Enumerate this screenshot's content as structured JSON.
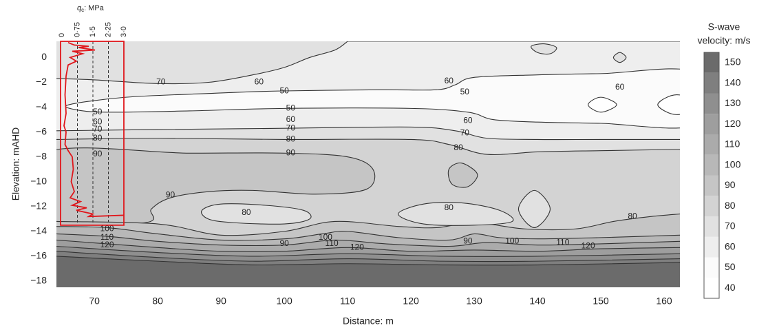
{
  "chart_data": {
    "type": "contour",
    "x_label": "Distance: m",
    "y_label": "Elevation: mAHD",
    "xlim": [
      64,
      162.5
    ],
    "ylim": [
      -18.5,
      1.3
    ],
    "xticks": [
      70,
      80,
      90,
      100,
      110,
      120,
      130,
      140,
      150,
      160
    ],
    "yticks": [
      {
        "value": 0,
        "label": "0"
      },
      {
        "value": -2,
        "label": "−2"
      },
      {
        "value": -4,
        "label": "−4"
      },
      {
        "value": -6,
        "label": "−6"
      },
      {
        "value": -8,
        "label": "−8"
      },
      {
        "value": -10,
        "label": "−10"
      },
      {
        "value": -12,
        "label": "−12"
      },
      {
        "value": -14,
        "label": "−14"
      },
      {
        "value": -16,
        "label": "−16"
      },
      {
        "value": -18,
        "label": "−18"
      }
    ],
    "colorbar": {
      "title": [
        "S-wave",
        "velocity: m/s"
      ],
      "levels": [
        40,
        50,
        60,
        70,
        80,
        90,
        100,
        110,
        120,
        130,
        140,
        150
      ],
      "colors": [
        "#ffffff",
        "#fbfbfb",
        "#eeeeee",
        "#e1e1e1",
        "#d3d3d3",
        "#c5c5c5",
        "#b8b8b8",
        "#ababab",
        "#9e9e9e",
        "#8f8f8f",
        "#7f7f7f",
        "#6b6b6b"
      ]
    },
    "regions": [
      {
        "level": 60,
        "fill": "below",
        "x": [
          64,
          162.5
        ],
        "y": [
          1.3,
          1.3
        ]
      },
      {
        "level": 70,
        "fill": "above",
        "x": [
          64,
          70,
          80,
          88,
          95,
          100,
          104,
          108,
          110
        ],
        "y": [
          -1.7,
          -1.8,
          -2.1,
          -2.0,
          -1.4,
          -0.8,
          0.0,
          0.6,
          1.3
        ]
      },
      {
        "level": 70,
        "fill": "closed",
        "x": [
          139,
          141,
          143,
          142,
          140
        ],
        "y": [
          0.9,
          1.1,
          0.8,
          0.3,
          0.4
        ]
      },
      {
        "level": 70,
        "fill": "closed",
        "x": [
          152,
          153,
          154,
          153
        ],
        "y": [
          0.0,
          0.4,
          0.0,
          -0.4
        ]
      },
      {
        "level": 50,
        "fill": "closed",
        "x": [
          66,
          75,
          88,
          99,
          115,
          124,
          127,
          130,
          140,
          150,
          165,
          165,
          150,
          140,
          133,
          129,
          120,
          100,
          85,
          72,
          67
        ],
        "y": [
          -3.8,
          -3.2,
          -2.9,
          -2.7,
          -2.6,
          -2.6,
          -2.2,
          -1.6,
          -1.4,
          -1.3,
          -1.2,
          -5.4,
          -5.3,
          -5.2,
          -5.0,
          -4.4,
          -4.1,
          -4.1,
          -4.3,
          -4.4,
          -4.2
        ]
      },
      {
        "level": 40,
        "fill": "closed",
        "x": [
          148,
          150,
          152.5,
          150
        ],
        "y": [
          -3.8,
          -3.2,
          -3.8,
          -4.4
        ]
      },
      {
        "level": 40,
        "fill": "closed",
        "x": [
          159,
          162,
          166,
          162
        ],
        "y": [
          -3.8,
          -3.0,
          -3.8,
          -4.6
        ]
      },
      {
        "level": 70,
        "fill": "below",
        "x": [
          64,
          80,
          100,
          120,
          127,
          132,
          140,
          150,
          162.5
        ],
        "y": [
          -5.9,
          -5.8,
          -5.7,
          -5.6,
          -5.9,
          -6.5,
          -6.6,
          -6.6,
          -6.6
        ]
      },
      {
        "level": 80,
        "fill": "below",
        "x": [
          64,
          80,
          100,
          120,
          126,
          132,
          140,
          150,
          162.5
        ],
        "y": [
          -6.6,
          -6.5,
          -6.6,
          -6.6,
          -7.0,
          -7.8,
          -7.6,
          -7.5,
          -7.4
        ]
      },
      {
        "level": 90,
        "fill": "closed",
        "x": [
          62,
          85,
          100,
          110,
          114,
          113,
          105,
          95,
          88,
          82,
          79,
          78,
          62
        ],
        "y": [
          -7.7,
          -7.7,
          -7.7,
          -8.0,
          -9.0,
          -10.6,
          -11.0,
          -10.7,
          -10.8,
          -11.3,
          -12.2,
          -13.3,
          -13.4
        ]
      },
      {
        "level": 90,
        "fill": "closed",
        "x": [
          126,
          128,
          130.5,
          129,
          126.5
        ],
        "y": [
          -9.0,
          -8.5,
          -9.4,
          -10.4,
          -10.2
        ]
      },
      {
        "level": 90,
        "fill": "below",
        "x": [
          64,
          80,
          90,
          100,
          108,
          118,
          124,
          130,
          138,
          146,
          152,
          158,
          162.5
        ],
        "y": [
          -13.2,
          -13.4,
          -14.3,
          -14.0,
          -13.2,
          -13.6,
          -13.7,
          -13.3,
          -13.8,
          -13.8,
          -13.2,
          -12.8,
          -12.6
        ]
      },
      {
        "level": 70,
        "fill": "closed",
        "x": [
          87,
          90,
          97,
          103,
          104,
          100,
          92,
          88
        ],
        "y": [
          -12.3,
          -11.8,
          -11.9,
          -12.3,
          -13.0,
          -13.4,
          -13.3,
          -13.0
        ]
      },
      {
        "level": 70,
        "fill": "closed",
        "x": [
          118,
          122,
          128,
          134,
          136,
          130,
          122
        ],
        "y": [
          -12.6,
          -11.8,
          -11.7,
          -12.3,
          -13.2,
          -13.5,
          -13.4
        ]
      },
      {
        "level": 70,
        "fill": "closed",
        "x": [
          137,
          139.5,
          142,
          139.5
        ],
        "y": [
          -12.2,
          -10.7,
          -12.2,
          -13.7
        ]
      },
      {
        "level": 100,
        "fill": "below",
        "x": [
          64,
          72,
          80,
          90,
          100,
          106,
          110,
          118,
          126,
          130,
          134,
          140,
          150,
          162.5
        ],
        "y": [
          -13.6,
          -13.7,
          -14.2,
          -14.7,
          -14.6,
          -14.2,
          -14.0,
          -14.5,
          -14.7,
          -14.2,
          -14.5,
          -14.6,
          -14.5,
          -14.3
        ]
      },
      {
        "level": 110,
        "fill": "below",
        "x": [
          64,
          72,
          80,
          90,
          100,
          108,
          116,
          126,
          132,
          140,
          150,
          162.5
        ],
        "y": [
          -14.2,
          -14.4,
          -14.8,
          -15.1,
          -15.1,
          -14.7,
          -15.0,
          -15.2,
          -14.9,
          -15.1,
          -15.0,
          -14.8
        ]
      },
      {
        "level": 120,
        "fill": "below",
        "x": [
          64,
          72,
          80,
          90,
          100,
          110,
          120,
          130,
          140,
          150,
          162.5
        ],
        "y": [
          -14.7,
          -15.0,
          -15.3,
          -15.6,
          -15.6,
          -15.3,
          -15.6,
          -15.5,
          -15.6,
          -15.4,
          -15.3
        ]
      },
      {
        "level": 130,
        "fill": "below",
        "x": [
          64,
          80,
          95,
          110,
          125,
          140,
          162.5
        ],
        "y": [
          -15.2,
          -15.7,
          -16.0,
          -15.8,
          -16.0,
          -16.0,
          -15.8
        ]
      },
      {
        "level": 140,
        "fill": "below",
        "x": [
          64,
          80,
          95,
          110,
          125,
          140,
          162.5
        ],
        "y": [
          -15.6,
          -16.1,
          -16.4,
          -16.2,
          -16.4,
          -16.4,
          -16.2
        ]
      },
      {
        "level": 150,
        "fill": "below",
        "x": [
          64,
          80,
          95,
          110,
          125,
          140,
          162.5
        ],
        "y": [
          -16.0,
          -16.4,
          -16.7,
          -16.6,
          -16.7,
          -16.7,
          -16.5
        ]
      }
    ],
    "contour_labels": [
      {
        "text": "70",
        "x": 80.5,
        "y": -2.0
      },
      {
        "text": "60",
        "x": 96,
        "y": -2.0
      },
      {
        "text": "50",
        "x": 100,
        "y": -2.7
      },
      {
        "text": "60",
        "x": 126,
        "y": -1.9
      },
      {
        "text": "50",
        "x": 128.5,
        "y": -2.8
      },
      {
        "text": "60",
        "x": 153,
        "y": -2.4
      },
      {
        "text": "50",
        "x": 70.5,
        "y": -4.4
      },
      {
        "text": "60",
        "x": 70.5,
        "y": -5.2
      },
      {
        "text": "70",
        "x": 70.5,
        "y": -5.8
      },
      {
        "text": "80",
        "x": 70.5,
        "y": -6.5
      },
      {
        "text": "90",
        "x": 70.5,
        "y": -7.8
      },
      {
        "text": "50",
        "x": 101,
        "y": -4.1
      },
      {
        "text": "60",
        "x": 101,
        "y": -5.0
      },
      {
        "text": "70",
        "x": 101,
        "y": -5.7
      },
      {
        "text": "80",
        "x": 101,
        "y": -6.6
      },
      {
        "text": "90",
        "x": 101,
        "y": -7.7
      },
      {
        "text": "60",
        "x": 129,
        "y": -5.1
      },
      {
        "text": "70",
        "x": 128.5,
        "y": -6.1
      },
      {
        "text": "80",
        "x": 127.5,
        "y": -7.3
      },
      {
        "text": "90",
        "x": 82,
        "y": -11.1
      },
      {
        "text": "80",
        "x": 94,
        "y": -12.5
      },
      {
        "text": "80",
        "x": 126,
        "y": -12.1
      },
      {
        "text": "80",
        "x": 155,
        "y": -12.8
      },
      {
        "text": "100",
        "x": 72,
        "y": -13.8
      },
      {
        "text": "110",
        "x": 72,
        "y": -14.5
      },
      {
        "text": "120",
        "x": 72,
        "y": -15.1
      },
      {
        "text": "90",
        "x": 100,
        "y": -15.0
      },
      {
        "text": "100",
        "x": 106.5,
        "y": -14.5
      },
      {
        "text": "110",
        "x": 107.5,
        "y": -15.0
      },
      {
        "text": "120",
        "x": 111.5,
        "y": -15.3
      },
      {
        "text": "90",
        "x": 129,
        "y": -14.8
      },
      {
        "text": "100",
        "x": 136,
        "y": -14.8
      },
      {
        "text": "110",
        "x": 144,
        "y": -14.9
      },
      {
        "text": "120",
        "x": 148,
        "y": -15.2
      }
    ],
    "cpt": {
      "axis_symbol": "q",
      "axis_subscript": "c",
      "axis_unit": ": MPa",
      "color": "#e0161b",
      "qlim": [
        0,
        3
      ],
      "qticks": [
        {
          "value": 0,
          "label": "0"
        },
        {
          "value": 0.75,
          "label": "0·75"
        },
        {
          "value": 1.5,
          "label": "1·5"
        },
        {
          "value": 2.25,
          "label": "2·25"
        },
        {
          "value": 3,
          "label": "3·0"
        }
      ],
      "box_bottom": -13.5,
      "qc": [
        0.3,
        0.6,
        1.3,
        0.8,
        1.6,
        0.5,
        1.0,
        0.4,
        0.7,
        0.3,
        0.2,
        0.15,
        0.2,
        0.1,
        0.2,
        0.15,
        0.3,
        0.5,
        0.55,
        0.45,
        0.6,
        0.4,
        0.9,
        0.5,
        1.2,
        0.7,
        1.5,
        1.3,
        3.0
      ],
      "elevation": [
        1.2,
        1.0,
        0.9,
        0.8,
        0.6,
        0.5,
        0.3,
        0.0,
        -0.3,
        -0.6,
        -1.5,
        -3,
        -4.5,
        -5.5,
        -6,
        -7,
        -7.5,
        -8,
        -9,
        -10,
        -10.8,
        -11.3,
        -11.6,
        -11.9,
        -12.1,
        -12.3,
        -12.6,
        -12.8,
        -12.7
      ]
    }
  }
}
